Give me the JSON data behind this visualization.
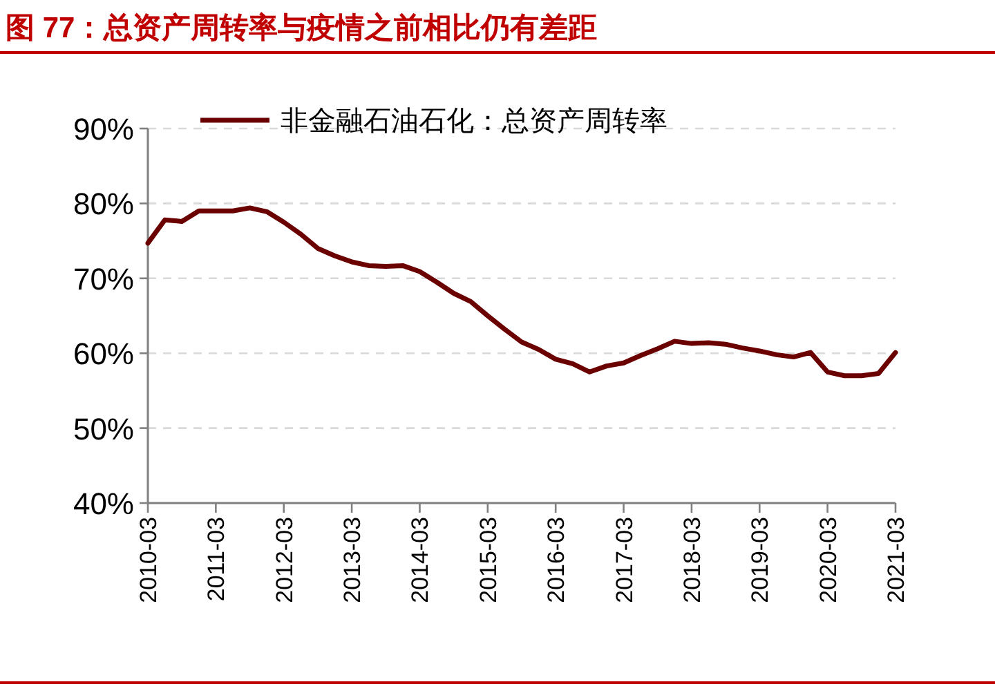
{
  "chart_data": {
    "type": "line",
    "title": "图 77：总资产周转率与疫情之前相比仍有差距",
    "x": [
      "2010-03",
      "2010-06",
      "2010-09",
      "2010-12",
      "2011-03",
      "2011-06",
      "2011-09",
      "2011-12",
      "2012-03",
      "2012-06",
      "2012-09",
      "2012-12",
      "2013-03",
      "2013-06",
      "2013-09",
      "2013-12",
      "2014-03",
      "2014-06",
      "2014-09",
      "2014-12",
      "2015-03",
      "2015-06",
      "2015-09",
      "2015-12",
      "2016-03",
      "2016-06",
      "2016-09",
      "2016-12",
      "2017-03",
      "2017-06",
      "2017-09",
      "2017-12",
      "2018-03",
      "2018-06",
      "2018-09",
      "2018-12",
      "2019-03",
      "2019-06",
      "2019-09",
      "2019-12",
      "2020-03",
      "2020-06",
      "2020-09",
      "2020-12",
      "2021-03"
    ],
    "series": [
      {
        "name": "非金融石油石化：总资产周转率",
        "color": "#6b0000",
        "values": [
          74.7,
          77.8,
          77.6,
          79.0,
          79.0,
          79.0,
          79.4,
          78.9,
          77.5,
          75.9,
          74.0,
          73.0,
          72.2,
          71.7,
          71.6,
          71.7,
          70.9,
          69.5,
          68.0,
          66.9,
          65.0,
          63.2,
          61.5,
          60.5,
          59.2,
          58.6,
          57.5,
          58.3,
          58.7,
          59.7,
          60.6,
          61.6,
          61.3,
          61.4,
          61.2,
          60.7,
          60.3,
          59.8,
          59.5,
          60.1,
          57.5,
          57.0,
          57.0,
          57.3,
          60.1
        ]
      }
    ],
    "xlim": [
      "2010-03",
      "2021-03"
    ],
    "xticks": [
      "2010-03",
      "2011-03",
      "2012-03",
      "2013-03",
      "2014-03",
      "2015-03",
      "2016-03",
      "2017-03",
      "2018-03",
      "2019-03",
      "2020-03",
      "2021-03"
    ],
    "ylim": [
      40,
      90
    ],
    "yticks": [
      {
        "value": 40,
        "label": "40%"
      },
      {
        "value": 50,
        "label": "50%"
      },
      {
        "value": 60,
        "label": "60%"
      },
      {
        "value": 70,
        "label": "70%"
      },
      {
        "value": 80,
        "label": "80%"
      },
      {
        "value": 90,
        "label": "90%"
      }
    ],
    "grid": "y",
    "legend": "top left",
    "line_style": "solid",
    "marker": "none"
  }
}
